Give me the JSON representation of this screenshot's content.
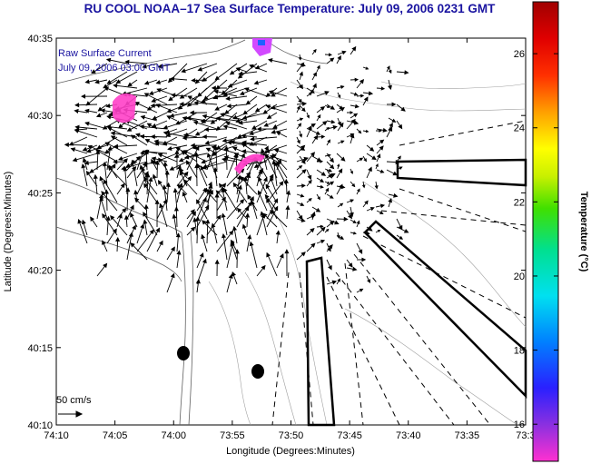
{
  "title": "RU COOL  NOAA–17  Sea Surface Temperature:  July 09, 2006 0231 GMT",
  "legend": {
    "line1": "Raw Surface Current",
    "line2": "July 09, 2006 03:00 GMT"
  },
  "scale_label": "50 cm/s",
  "map": {
    "xlabel": "Longitude (Degrees:Minutes)",
    "ylabel": "Latitude (Degrees:Minutes)",
    "x_ticks": [
      "74:10",
      "74:05",
      "74:00",
      "73:55",
      "73:50",
      "73:45",
      "73:40",
      "73:35",
      "73:3"
    ],
    "y_ticks": [
      "40:35",
      "40:30",
      "40:25",
      "40:20",
      "40:15",
      "40:10"
    ],
    "land_color": "#ffffff",
    "contour_color": "#a0a0a0"
  },
  "colorbar": {
    "label": "Temperature (°C)",
    "ticks": [
      "26",
      "24",
      "22",
      "20",
      "18",
      "16"
    ],
    "min": 15,
    "max": 27.4
  },
  "sst_patches": [
    {
      "name": "raritan-bay-patch",
      "color": "#ff40c8"
    },
    {
      "name": "upper-bay-patch",
      "color": "#c040ff"
    },
    {
      "name": "sandy-hook-patch",
      "color": "#ff40c8"
    }
  ],
  "buoys": [
    {
      "name": "buoy-west"
    },
    {
      "name": "buoy-east"
    }
  ]
}
